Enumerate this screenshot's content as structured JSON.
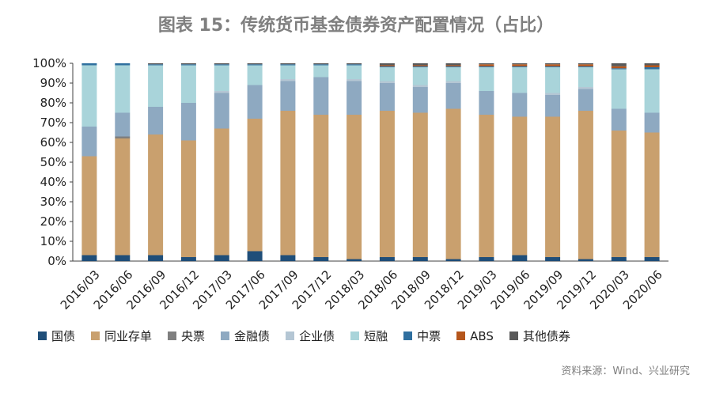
{
  "title": "图表 15：传统货币基金债券资产配置情况（占比）",
  "source": "资料来源：Wind、兴业研究",
  "chart_data": {
    "type": "bar",
    "stacked": true,
    "title": "图表 15：传统货币基金债券资产配置情况（占比）",
    "xlabel": "",
    "ylabel": "",
    "ylim": [
      0,
      100
    ],
    "yticks": [
      "0%",
      "10%",
      "20%",
      "30%",
      "40%",
      "50%",
      "60%",
      "70%",
      "80%",
      "90%",
      "100%"
    ],
    "legend_position": "bottom",
    "categories": [
      "2016/03",
      "2016/06",
      "2016/09",
      "2016/12",
      "2017/03",
      "2017/06",
      "2017/09",
      "2017/12",
      "2018/03",
      "2018/06",
      "2018/09",
      "2018/12",
      "2019/03",
      "2019/06",
      "2019/09",
      "2019/12",
      "2020/03",
      "2020/06"
    ],
    "series": [
      {
        "name": "国债",
        "color": "#1f4e79",
        "values": [
          3,
          3,
          3,
          2,
          3,
          5,
          3,
          2,
          1,
          2,
          2,
          1,
          2,
          3,
          2,
          1,
          2,
          2
        ]
      },
      {
        "name": "同业存单",
        "color": "#c9a06e",
        "values": [
          50,
          59,
          61,
          59,
          64,
          67,
          73,
          72,
          73,
          74,
          73,
          76,
          72,
          70,
          71,
          75,
          64,
          63
        ]
      },
      {
        "name": "央票",
        "color": "#7f7f7f",
        "values": [
          0,
          1,
          0,
          0,
          0,
          0,
          0,
          0,
          0,
          0,
          0,
          0,
          0,
          0,
          0,
          0,
          0,
          0
        ]
      },
      {
        "name": "金融债",
        "color": "#8ea9c1",
        "values": [
          15,
          12,
          14,
          19,
          18,
          17,
          15,
          19,
          17,
          14,
          13,
          13,
          12,
          12,
          11,
          11,
          11,
          10
        ]
      },
      {
        "name": "企业债",
        "color": "#b4c6d4",
        "values": [
          0,
          0,
          0,
          0,
          1,
          0,
          1,
          0,
          1,
          1,
          1,
          1,
          0,
          0,
          1,
          1,
          0,
          0
        ]
      },
      {
        "name": "短融",
        "color": "#a9d4da",
        "values": [
          31,
          24,
          21,
          19,
          13,
          10,
          7,
          6,
          7,
          7,
          9,
          7,
          12,
          13,
          13,
          10,
          20,
          22
        ]
      },
      {
        "name": "中票",
        "color": "#2f6f9f",
        "values": [
          1,
          1,
          0.5,
          0.5,
          0.5,
          0.5,
          0.5,
          0.5,
          0.5,
          0.5,
          0.5,
          0.5,
          0.5,
          0.5,
          0.5,
          0.5,
          0.5,
          1
        ]
      },
      {
        "name": "ABS",
        "color": "#b5561c",
        "values": [
          0,
          0,
          0,
          0,
          0,
          0,
          0,
          0,
          0,
          0.5,
          0.5,
          0.5,
          1,
          1,
          1,
          1,
          1,
          1
        ]
      },
      {
        "name": "其他债券",
        "color": "#595959",
        "values": [
          0,
          0,
          0.5,
          0.5,
          0.5,
          0.5,
          0.5,
          0.5,
          0.5,
          1,
          1,
          1,
          0.5,
          0.5,
          0.5,
          0.5,
          1.5,
          1
        ]
      }
    ]
  }
}
